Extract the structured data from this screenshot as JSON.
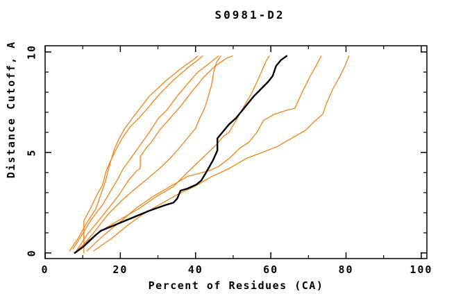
{
  "chart_data": {
    "type": "line",
    "title": "S0981-D2",
    "xlabel": "Percent of Residues (CA)",
    "ylabel": "Distance Cutoff, A",
    "xlim": [
      0,
      101.5
    ],
    "ylim": [
      -0.28,
      10.31
    ],
    "x_major_ticks": [
      0,
      20,
      40,
      60,
      80,
      100
    ],
    "x_minor_ticks": [
      10,
      30,
      50,
      70,
      90
    ],
    "y_major_ticks": [
      0,
      5,
      10
    ],
    "y_minor_ticks": [
      1,
      2,
      3,
      4,
      6,
      7,
      8,
      9
    ],
    "grid": false,
    "legend": null,
    "frame": "box-with-inward-ticks",
    "colors": {
      "model_line": "#000000",
      "prediction_line": "#f58214",
      "axis": "#000000",
      "background": "#ffffff"
    },
    "series": [
      {
        "name": "prediction-1",
        "color": "#f58214",
        "width": 1.3,
        "points": [
          [
            6.5,
            0.1
          ],
          [
            8.7,
            0.7
          ],
          [
            11.1,
            1.5
          ],
          [
            13.5,
            2.2
          ],
          [
            14.8,
            2.9
          ],
          [
            16.1,
            3.6
          ],
          [
            16.6,
            4.0
          ],
          [
            17.5,
            4.6
          ],
          [
            18.5,
            5.2
          ],
          [
            19.7,
            5.7
          ],
          [
            21.2,
            6.2
          ],
          [
            24.0,
            6.9
          ],
          [
            27.7,
            7.8
          ],
          [
            32.3,
            8.6
          ],
          [
            36.3,
            9.2
          ],
          [
            39.3,
            9.6
          ],
          [
            40.6,
            9.8
          ]
        ]
      },
      {
        "name": "prediction-2",
        "color": "#f58214",
        "width": 1.3,
        "points": [
          [
            10.3,
            0.0
          ],
          [
            10.3,
            1.6
          ],
          [
            12.0,
            2.2
          ],
          [
            13.8,
            2.9
          ],
          [
            15.3,
            3.4
          ],
          [
            16.1,
            4.0
          ],
          [
            17.2,
            4.5
          ],
          [
            19.0,
            5.2
          ],
          [
            20.8,
            5.8
          ],
          [
            22.7,
            6.3
          ],
          [
            24.9,
            6.7
          ],
          [
            26.8,
            7.1
          ],
          [
            30.4,
            7.9
          ],
          [
            34.1,
            8.6
          ],
          [
            37.8,
            9.2
          ],
          [
            40.6,
            9.6
          ],
          [
            41.9,
            9.8
          ]
        ]
      },
      {
        "name": "prediction-3",
        "color": "#f58214",
        "width": 1.3,
        "points": [
          [
            7.4,
            0.2
          ],
          [
            9.8,
            0.9
          ],
          [
            12.4,
            1.7
          ],
          [
            15.3,
            2.4
          ],
          [
            17.5,
            3.1
          ],
          [
            19.4,
            3.7
          ],
          [
            20.8,
            4.2
          ],
          [
            23.1,
            4.8
          ],
          [
            25.8,
            5.5
          ],
          [
            27.7,
            6.0
          ],
          [
            30.1,
            6.7
          ],
          [
            32.3,
            7.1
          ],
          [
            35.1,
            7.8
          ],
          [
            37.8,
            8.4
          ],
          [
            40.6,
            9.0
          ],
          [
            43.4,
            9.4
          ],
          [
            46.1,
            9.8
          ]
        ]
      },
      {
        "name": "prediction-4",
        "color": "#f58214",
        "width": 1.3,
        "points": [
          [
            8.3,
            0.1
          ],
          [
            11.1,
            0.9
          ],
          [
            14.2,
            1.6
          ],
          [
            17.2,
            2.3
          ],
          [
            19.7,
            2.9
          ],
          [
            22.1,
            3.6
          ],
          [
            24.4,
            4.1
          ],
          [
            25.3,
            4.2
          ],
          [
            25.3,
            4.8
          ],
          [
            26.8,
            5.2
          ],
          [
            28.2,
            5.5
          ],
          [
            30.4,
            6.1
          ],
          [
            33.2,
            6.7
          ],
          [
            36.0,
            7.3
          ],
          [
            39.3,
            8.1
          ],
          [
            42.4,
            8.8
          ],
          [
            45.2,
            9.3
          ],
          [
            48.3,
            9.7
          ],
          [
            49.8,
            9.8
          ]
        ]
      },
      {
        "name": "prediction-5",
        "color": "#f58214",
        "width": 1.3,
        "points": [
          [
            9.2,
            0.2
          ],
          [
            12.9,
            1.0
          ],
          [
            16.6,
            1.9
          ],
          [
            20.3,
            2.6
          ],
          [
            24.0,
            3.2
          ],
          [
            27.3,
            3.7
          ],
          [
            30.4,
            4.2
          ],
          [
            33.2,
            4.7
          ],
          [
            35.6,
            5.2
          ],
          [
            37.8,
            5.7
          ],
          [
            40.0,
            6.2
          ],
          [
            41.1,
            6.7
          ],
          [
            42.4,
            7.2
          ],
          [
            43.4,
            7.8
          ],
          [
            44.3,
            8.4
          ],
          [
            44.8,
            9.0
          ],
          [
            45.6,
            9.5
          ],
          [
            46.7,
            9.8
          ]
        ]
      },
      {
        "name": "prediction-6",
        "color": "#f58214",
        "width": 1.3,
        "points": [
          [
            8.3,
            0.1
          ],
          [
            12.0,
            0.7
          ],
          [
            15.7,
            1.2
          ],
          [
            20.3,
            1.7
          ],
          [
            24.9,
            2.2
          ],
          [
            29.5,
            2.8
          ],
          [
            34.1,
            3.3
          ],
          [
            37.8,
            4.0
          ],
          [
            40.6,
            4.5
          ],
          [
            43.4,
            5.0
          ],
          [
            45.6,
            5.4
          ],
          [
            47.4,
            5.8
          ],
          [
            48.9,
            6.0
          ],
          [
            51.7,
            6.9
          ],
          [
            53.5,
            7.5
          ],
          [
            54.8,
            7.9
          ],
          [
            56.3,
            8.5
          ],
          [
            57.7,
            9.1
          ],
          [
            58.9,
            9.6
          ],
          [
            59.6,
            9.8
          ]
        ]
      },
      {
        "name": "prediction-7",
        "color": "#f58214",
        "width": 1.3,
        "points": [
          [
            11.1,
            0.1
          ],
          [
            15.7,
            0.9
          ],
          [
            20.3,
            1.6
          ],
          [
            24.0,
            2.2
          ],
          [
            28.6,
            2.8
          ],
          [
            33.2,
            3.3
          ],
          [
            37.8,
            3.8
          ],
          [
            43.7,
            4.1
          ],
          [
            46.1,
            4.3
          ],
          [
            48.9,
            4.7
          ],
          [
            51.7,
            5.2
          ],
          [
            54.1,
            5.5
          ],
          [
            56.3,
            6.0
          ],
          [
            58.1,
            6.6
          ],
          [
            60.9,
            6.9
          ],
          [
            64.2,
            7.1
          ],
          [
            66.4,
            7.2
          ],
          [
            68.6,
            8.1
          ],
          [
            70.5,
            8.8
          ],
          [
            72.0,
            9.3
          ],
          [
            73.4,
            9.8
          ]
        ]
      },
      {
        "name": "prediction-8",
        "color": "#f58214",
        "width": 1.3,
        "points": [
          [
            12.9,
            0.1
          ],
          [
            17.5,
            0.7
          ],
          [
            22.1,
            1.4
          ],
          [
            25.8,
            1.9
          ],
          [
            30.4,
            2.4
          ],
          [
            35.1,
            2.9
          ],
          [
            39.7,
            3.3
          ],
          [
            44.3,
            3.8
          ],
          [
            48.9,
            4.2
          ],
          [
            53.5,
            4.7
          ],
          [
            57.7,
            5.0
          ],
          [
            61.8,
            5.3
          ],
          [
            65.5,
            5.7
          ],
          [
            69.2,
            6.1
          ],
          [
            71.9,
            6.6
          ],
          [
            73.8,
            6.9
          ],
          [
            74.7,
            7.4
          ],
          [
            76.6,
            8.2
          ],
          [
            78.4,
            8.8
          ],
          [
            79.7,
            9.3
          ],
          [
            80.8,
            9.8
          ]
        ]
      },
      {
        "name": "model",
        "color": "#000000",
        "width": 2.4,
        "points": [
          [
            7.9,
            0.0
          ],
          [
            10.1,
            0.3
          ],
          [
            13.5,
            0.9
          ],
          [
            14.8,
            1.1
          ],
          [
            27.7,
            2.1
          ],
          [
            32.3,
            2.4
          ],
          [
            34.1,
            2.5
          ],
          [
            35.1,
            2.7
          ],
          [
            36.0,
            3.1
          ],
          [
            37.8,
            3.2
          ],
          [
            40.2,
            3.4
          ],
          [
            41.5,
            3.6
          ],
          [
            42.8,
            4.0
          ],
          [
            44.6,
            4.6
          ],
          [
            45.8,
            5.1
          ],
          [
            45.8,
            5.7
          ],
          [
            48.9,
            6.4
          ],
          [
            50.7,
            6.7
          ],
          [
            55.5,
            7.8
          ],
          [
            59.2,
            8.5
          ],
          [
            60.5,
            8.8
          ],
          [
            61.4,
            9.3
          ],
          [
            62.7,
            9.6
          ],
          [
            64.2,
            9.8
          ]
        ]
      }
    ]
  }
}
